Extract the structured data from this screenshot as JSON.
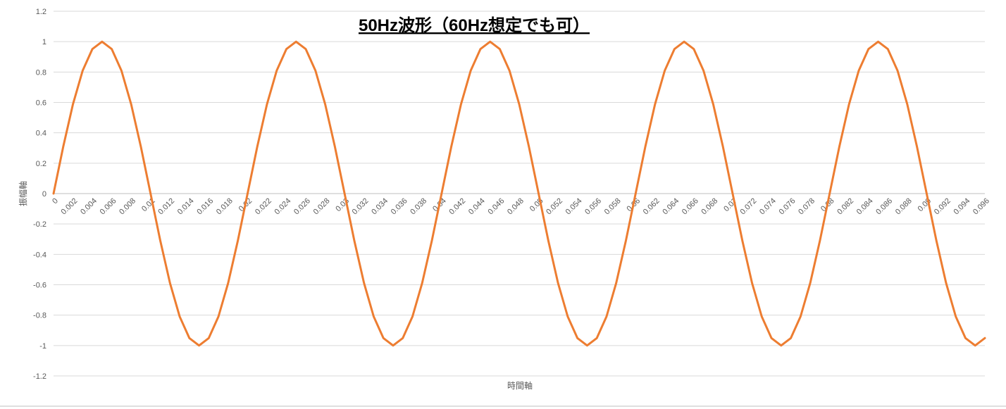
{
  "chart_data": {
    "type": "line",
    "title": "50Hz波形（60Hz想定でも可）",
    "x_label": "時間軸",
    "y_label": "振幅軸",
    "categories": [
      "0",
      null,
      "0.002",
      null,
      "0.004",
      null,
      "0.006",
      null,
      "0.008",
      null,
      "0.01",
      null,
      "0.012",
      null,
      "0.014",
      null,
      "0.016",
      null,
      "0.018",
      null,
      "0.02",
      null,
      "0.022",
      null,
      "0.024",
      null,
      "0.026",
      null,
      "0.028",
      null,
      "0.03",
      null,
      "0.032",
      null,
      "0.034",
      null,
      "0.036",
      null,
      "0.038",
      null,
      "0.04",
      null,
      "0.042",
      null,
      "0.044",
      null,
      "0.046",
      null,
      "0.048",
      null,
      "0.05",
      null,
      "0.052",
      null,
      "0.054",
      null,
      "0.056",
      null,
      "0.058",
      null,
      "0.06",
      null,
      "0.062",
      null,
      "0.064",
      null,
      "0.066",
      null,
      "0.068",
      null,
      "0.07",
      null,
      "0.072",
      null,
      "0.074",
      null,
      "0.076",
      null,
      "0.078",
      null,
      "0.08",
      null,
      "0.082",
      null,
      "0.084",
      null,
      "0.086",
      null,
      "0.088",
      null,
      "0.09",
      null,
      "0.092",
      null,
      "0.094",
      null,
      "0.096"
    ],
    "values": [
      0,
      0.309,
      0.588,
      0.809,
      0.951,
      1,
      0.951,
      0.809,
      0.588,
      0.309,
      0,
      -0.309,
      -0.588,
      -0.809,
      -0.951,
      -1,
      -0.951,
      -0.809,
      -0.588,
      -0.309,
      0,
      0.309,
      0.588,
      0.809,
      0.951,
      1,
      0.951,
      0.809,
      0.588,
      0.309,
      0,
      -0.309,
      -0.588,
      -0.809,
      -0.951,
      -1,
      -0.951,
      -0.809,
      -0.588,
      -0.309,
      0,
      0.309,
      0.588,
      0.809,
      0.951,
      1,
      0.951,
      0.809,
      0.588,
      0.309,
      0,
      -0.309,
      -0.588,
      -0.809,
      -0.951,
      -1,
      -0.951,
      -0.809,
      -0.588,
      -0.309,
      0,
      0.309,
      0.588,
      0.809,
      0.951,
      1,
      0.951,
      0.809,
      0.588,
      0.309,
      0,
      -0.309,
      -0.588,
      -0.809,
      -0.951,
      -1,
      -0.951,
      -0.809,
      -0.588,
      -0.309,
      0,
      0.309,
      0.588,
      0.809,
      0.951,
      1,
      0.951,
      0.809,
      0.588,
      0.309,
      0,
      -0.309,
      -0.588,
      -0.809,
      -0.951,
      -1,
      -0.951
    ],
    "color": "#ed7d31",
    "ylim": [
      -1.2,
      1.2
    ],
    "yticks": [
      -1.2,
      -1,
      -0.8,
      -0.6,
      -0.4,
      -0.2,
      0,
      0.2,
      0.4,
      0.6,
      0.8,
      1,
      1.2
    ],
    "grid": true
  }
}
